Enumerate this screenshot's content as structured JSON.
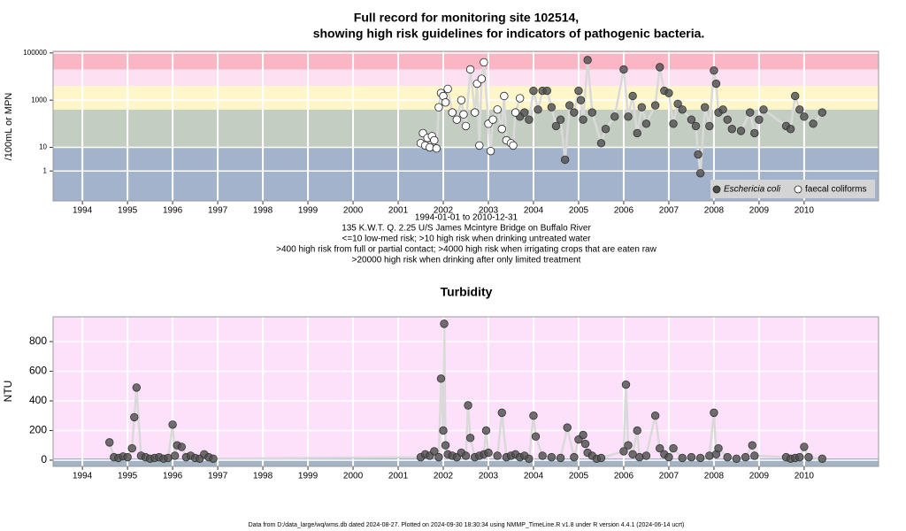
{
  "chart_data": [
    {
      "type": "scatter",
      "title": [
        "Full record for monitoring site 102514,",
        "showing high risk guidelines for indicators of pathogenic bacteria."
      ],
      "ylabel": "/100mL or MPN",
      "ylog": true,
      "xlim": [
        1993.35,
        2011.65
      ],
      "xticks": [
        1994,
        1995,
        1996,
        1997,
        1998,
        1999,
        2000,
        2001,
        2002,
        2003,
        2004,
        2005,
        2006,
        2007,
        2008,
        2009,
        2010
      ],
      "ylim": [
        0.054,
        117000
      ],
      "yticks": [
        1,
        10,
        1000,
        100000
      ],
      "guidelines": [
        10,
        400,
        4000,
        20000
      ],
      "band_colors": [
        "#a3b3cc",
        "#c4cdc1",
        "#fff7c9",
        "#fde1f3",
        "#fbb6c5"
      ],
      "grid": true,
      "legend": "bottom-right",
      "series": [
        {
          "name": "Eschericia coli",
          "color": "#4d4d4d",
          "marker": "filled",
          "x": [
            2003.7,
            2003.8,
            2003.9,
            2004.0,
            2004.1,
            2004.2,
            2004.3,
            2004.4,
            2004.5,
            2004.6,
            2004.7,
            2004.8,
            2004.9,
            2005.0,
            2005.05,
            2005.1,
            2005.2,
            2005.3,
            2005.5,
            2005.6,
            2005.8,
            2006.0,
            2006.1,
            2006.2,
            2006.3,
            2006.4,
            2006.5,
            2006.7,
            2006.8,
            2006.9,
            2007.0,
            2007.1,
            2007.2,
            2007.3,
            2007.5,
            2007.6,
            2007.65,
            2007.7,
            2007.8,
            2007.9,
            2008.0,
            2008.05,
            2008.1,
            2008.2,
            2008.3,
            2008.4,
            2008.6,
            2008.8,
            2008.9,
            2009.0,
            2009.1,
            2009.6,
            2009.7,
            2009.8,
            2009.9,
            2010.0,
            2010.2,
            2010.4
          ],
          "values": [
            200,
            300,
            150,
            2500,
            400,
            2500,
            2500,
            500,
            80,
            150,
            3,
            600,
            300,
            2500,
            1000,
            150,
            50000,
            300,
            15,
            60,
            200,
            20000,
            200,
            1500,
            40,
            500,
            100,
            600,
            25000,
            2500,
            2000,
            100,
            700,
            400,
            150,
            80,
            5,
            0.8,
            500,
            80,
            18000,
            5000,
            300,
            400,
            150,
            60,
            50,
            300,
            40,
            150,
            400,
            80,
            60,
            1500,
            400,
            200,
            100,
            300
          ]
        },
        {
          "name": "faecal coliforms",
          "color": "#ffffff",
          "marker": "open",
          "x": [
            2001.5,
            2001.55,
            2001.6,
            2001.65,
            2001.7,
            2001.75,
            2001.8,
            2001.85,
            2001.9,
            2001.95,
            2002.0,
            2002.05,
            2002.1,
            2002.2,
            2002.3,
            2002.4,
            2002.45,
            2002.5,
            2002.6,
            2002.7,
            2002.75,
            2002.8,
            2002.85,
            2002.9,
            2003.0,
            2003.05,
            2003.1,
            2003.2,
            2003.3,
            2003.35,
            2003.4,
            2003.5,
            2003.55,
            2003.6,
            2003.7
          ],
          "values": [
            15,
            40,
            12,
            25,
            10,
            30,
            20,
            9,
            500,
            2000,
            1500,
            800,
            3000,
            300,
            150,
            1000,
            250,
            80,
            20000,
            300,
            5000,
            12,
            8000,
            40000,
            100,
            7,
            150,
            400,
            60,
            1500,
            20,
            15,
            12,
            300,
            1200
          ]
        }
      ],
      "notes": [
        "1994-01-01 to 2010-12-31",
        "135 K.W.T. Q. 2.25 U/S James Mcintyre Bridge on Buffalo River",
        "<=10 low-med risk; >10 high risk when drinking untreated water",
        ">400 high risk from full or partial contact; >4000 high risk when irrigating crops that are eaten raw",
        ">20000 high risk when drinking after only limited treatment"
      ]
    },
    {
      "type": "scatter",
      "title": "Turbidity",
      "ylabel": "NTU",
      "ylog": false,
      "xlim": [
        1993.35,
        2011.65
      ],
      "xticks": [
        1994,
        1995,
        1996,
        1997,
        1998,
        1999,
        2000,
        2001,
        2002,
        2003,
        2004,
        2005,
        2006,
        2007,
        2008,
        2009,
        2010
      ],
      "ylim": [
        -42,
        967
      ],
      "yticks": [
        0,
        200,
        400,
        600,
        800
      ],
      "background": "#fde1fb",
      "grid": true,
      "series": [
        {
          "color": "#4d4d4d",
          "marker": "filled",
          "x": [
            1994.6,
            1994.7,
            1994.8,
            1994.9,
            1995.0,
            1995.1,
            1995.15,
            1995.2,
            1995.3,
            1995.4,
            1995.5,
            1995.6,
            1995.7,
            1995.8,
            1995.9,
            1996.0,
            1996.05,
            1996.1,
            1996.2,
            1996.3,
            1996.4,
            1996.5,
            1996.6,
            1996.7,
            1996.8,
            1996.9,
            2001.5,
            2001.6,
            2001.7,
            2001.8,
            2001.9,
            2001.95,
            2002.0,
            2002.02,
            2002.05,
            2002.1,
            2002.2,
            2002.3,
            2002.4,
            2002.5,
            2002.55,
            2002.6,
            2002.7,
            2002.8,
            2002.9,
            2002.95,
            2003.0,
            2003.2,
            2003.3,
            2003.4,
            2003.5,
            2003.6,
            2003.7,
            2003.8,
            2003.9,
            2004.0,
            2004.05,
            2004.2,
            2004.4,
            2004.6,
            2004.75,
            2004.9,
            2005.0,
            2005.1,
            2005.15,
            2005.2,
            2005.3,
            2005.4,
            2005.5,
            2006.0,
            2006.05,
            2006.1,
            2006.2,
            2006.3,
            2006.35,
            2006.5,
            2006.7,
            2006.8,
            2006.9,
            2007.0,
            2007.1,
            2007.3,
            2007.5,
            2007.7,
            2007.9,
            2008.0,
            2008.05,
            2008.1,
            2008.3,
            2008.5,
            2008.7,
            2008.85,
            2008.9,
            2009.6,
            2009.7,
            2009.8,
            2009.9,
            2010.0,
            2010.1,
            2010.4
          ],
          "values": [
            120,
            20,
            15,
            25,
            20,
            80,
            290,
            490,
            30,
            20,
            10,
            15,
            20,
            10,
            15,
            240,
            30,
            100,
            90,
            20,
            30,
            15,
            10,
            40,
            20,
            10,
            20,
            40,
            30,
            60,
            20,
            550,
            200,
            920,
            100,
            40,
            30,
            20,
            50,
            30,
            370,
            150,
            20,
            30,
            40,
            200,
            50,
            30,
            320,
            20,
            30,
            40,
            20,
            30,
            10,
            300,
            160,
            30,
            20,
            15,
            220,
            20,
            140,
            170,
            110,
            50,
            30,
            10,
            15,
            60,
            510,
            100,
            40,
            200,
            20,
            30,
            300,
            80,
            40,
            20,
            80,
            15,
            20,
            15,
            30,
            320,
            40,
            80,
            20,
            10,
            20,
            100,
            30,
            20,
            10,
            15,
            20,
            90,
            20,
            10
          ]
        }
      ]
    }
  ],
  "footer": "Data from D:/data_large/wq/wms.db dated 2024-08-27. Plotted on 2024-09-30 18:30:34 using NMMP_TimeLine.R v1.8 under R version 4.4.1 (2024-06-14 ucrt)"
}
